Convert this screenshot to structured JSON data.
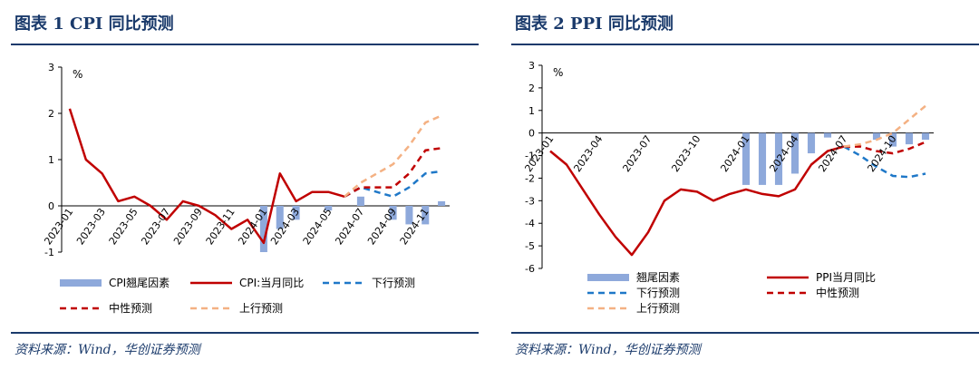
{
  "figures": [
    {
      "title": "图表 1 CPI 同比预测",
      "source": "资料来源：Wind，华创证券预测",
      "chart_data": {
        "type": "bar+line",
        "unit": "%",
        "ylim": [
          -1,
          3
        ],
        "yticks": [
          "-1",
          "0",
          "1",
          "2",
          "3"
        ],
        "x": [
          "2023-01",
          "2023-02",
          "2023-03",
          "2023-04",
          "2023-05",
          "2023-06",
          "2023-07",
          "2023-08",
          "2023-09",
          "2023-10",
          "2023-11",
          "2023-12",
          "2024-01",
          "2024-02",
          "2024-03",
          "2024-04",
          "2024-05",
          "2024-06",
          "2024-07",
          "2024-08",
          "2024-09",
          "2024-10",
          "2024-11",
          "2024-12"
        ],
        "xticks": [
          "2023-01",
          "2023-03",
          "2023-05",
          "2023-07",
          "2023-09",
          "2023-11",
          "2024-01",
          "2024-03",
          "2024-05",
          "2024-07",
          "2024-09",
          "2024-11"
        ],
        "series": [
          {
            "name": "CPI翘尾因素",
            "kind": "bar",
            "color": "#8ea9db",
            "values": [
              null,
              null,
              null,
              null,
              null,
              null,
              null,
              null,
              null,
              null,
              null,
              null,
              -1.0,
              -0.5,
              -0.3,
              null,
              -0.1,
              null,
              0.2,
              null,
              -0.3,
              -0.4,
              -0.4,
              0.1
            ]
          },
          {
            "name": "CPI:当月同比",
            "kind": "line",
            "color": "#c00000",
            "values": [
              2.1,
              1.0,
              0.7,
              0.1,
              0.2,
              0.0,
              -0.3,
              0.1,
              0.0,
              -0.2,
              -0.5,
              -0.3,
              -0.8,
              0.7,
              0.1,
              0.3,
              0.3,
              0.2,
              null,
              null,
              null,
              null,
              null,
              null
            ]
          },
          {
            "name": "下行预测",
            "kind": "dashed",
            "color": "#1f78c8",
            "values": [
              null,
              null,
              null,
              null,
              null,
              null,
              null,
              null,
              null,
              null,
              null,
              null,
              null,
              null,
              null,
              null,
              null,
              0.2,
              0.4,
              0.3,
              0.2,
              0.4,
              0.7,
              0.75
            ]
          },
          {
            "name": "中性预测",
            "kind": "dashed",
            "color": "#c00000",
            "values": [
              null,
              null,
              null,
              null,
              null,
              null,
              null,
              null,
              null,
              null,
              null,
              null,
              null,
              null,
              null,
              null,
              null,
              0.2,
              0.4,
              0.4,
              0.4,
              0.7,
              1.2,
              1.25
            ]
          },
          {
            "name": "上行预测",
            "kind": "dashed",
            "color": "#f4b183",
            "values": [
              null,
              null,
              null,
              null,
              null,
              null,
              null,
              null,
              null,
              null,
              null,
              null,
              null,
              null,
              null,
              null,
              null,
              0.2,
              0.5,
              0.7,
              0.9,
              1.3,
              1.8,
              1.95
            ]
          }
        ]
      }
    },
    {
      "title": "图表 2 PPI 同比预测",
      "source": "资料来源：Wind，华创证券预测",
      "chart_data": {
        "type": "bar+line",
        "unit": "%",
        "ylim": [
          -6,
          3
        ],
        "yticks": [
          "-6",
          "-5",
          "-4",
          "-3",
          "-2",
          "-1",
          "0",
          "1",
          "2",
          "3"
        ],
        "x": [
          "2023-01",
          "2023-02",
          "2023-03",
          "2023-04",
          "2023-05",
          "2023-06",
          "2023-07",
          "2023-08",
          "2023-09",
          "2023-10",
          "2023-11",
          "2023-12",
          "2024-01",
          "2024-02",
          "2024-03",
          "2024-04",
          "2024-05",
          "2024-06",
          "2024-07",
          "2024-08",
          "2024-09",
          "2024-10",
          "2024-11",
          "2024-12"
        ],
        "xticks": [
          "2023-01",
          "2023-04",
          "2023-07",
          "2023-10",
          "2024-01",
          "2024-04",
          "2024-07",
          "2024-10"
        ],
        "series": [
          {
            "name": "翘尾因素",
            "kind": "bar",
            "color": "#8ea9db",
            "values": [
              null,
              null,
              null,
              null,
              null,
              null,
              null,
              null,
              null,
              null,
              null,
              null,
              -2.3,
              -2.3,
              -2.3,
              -1.8,
              -0.9,
              -0.2,
              null,
              null,
              -0.3,
              -0.6,
              -0.5,
              -0.3
            ]
          },
          {
            "name": "PPI当月同比",
            "kind": "line",
            "color": "#c00000",
            "values": [
              -0.8,
              -1.4,
              -2.5,
              -3.6,
              -4.6,
              -5.4,
              -4.4,
              -3.0,
              -2.5,
              -2.6,
              -3.0,
              -2.7,
              -2.5,
              -2.7,
              -2.8,
              -2.5,
              -1.4,
              -0.8,
              -0.6,
              null,
              null,
              null,
              null,
              null
            ]
          },
          {
            "name": "下行预测",
            "kind": "dashed",
            "color": "#1f78c8",
            "values": [
              null,
              null,
              null,
              null,
              null,
              null,
              null,
              null,
              null,
              null,
              null,
              null,
              null,
              null,
              null,
              null,
              null,
              null,
              -0.6,
              -1.0,
              -1.5,
              -1.9,
              -1.95,
              -1.8
            ]
          },
          {
            "name": "中性预测",
            "kind": "dashed",
            "color": "#c00000",
            "values": [
              null,
              null,
              null,
              null,
              null,
              null,
              null,
              null,
              null,
              null,
              null,
              null,
              null,
              null,
              null,
              null,
              null,
              null,
              -0.6,
              -0.6,
              -0.8,
              -0.9,
              -0.7,
              -0.4
            ]
          },
          {
            "name": "上行预测",
            "kind": "dashed",
            "color": "#f4b183",
            "values": [
              null,
              null,
              null,
              null,
              null,
              null,
              null,
              null,
              null,
              null,
              null,
              null,
              null,
              null,
              null,
              null,
              null,
              null,
              -0.6,
              -0.5,
              -0.3,
              0.0,
              0.6,
              1.2
            ]
          }
        ]
      }
    }
  ]
}
